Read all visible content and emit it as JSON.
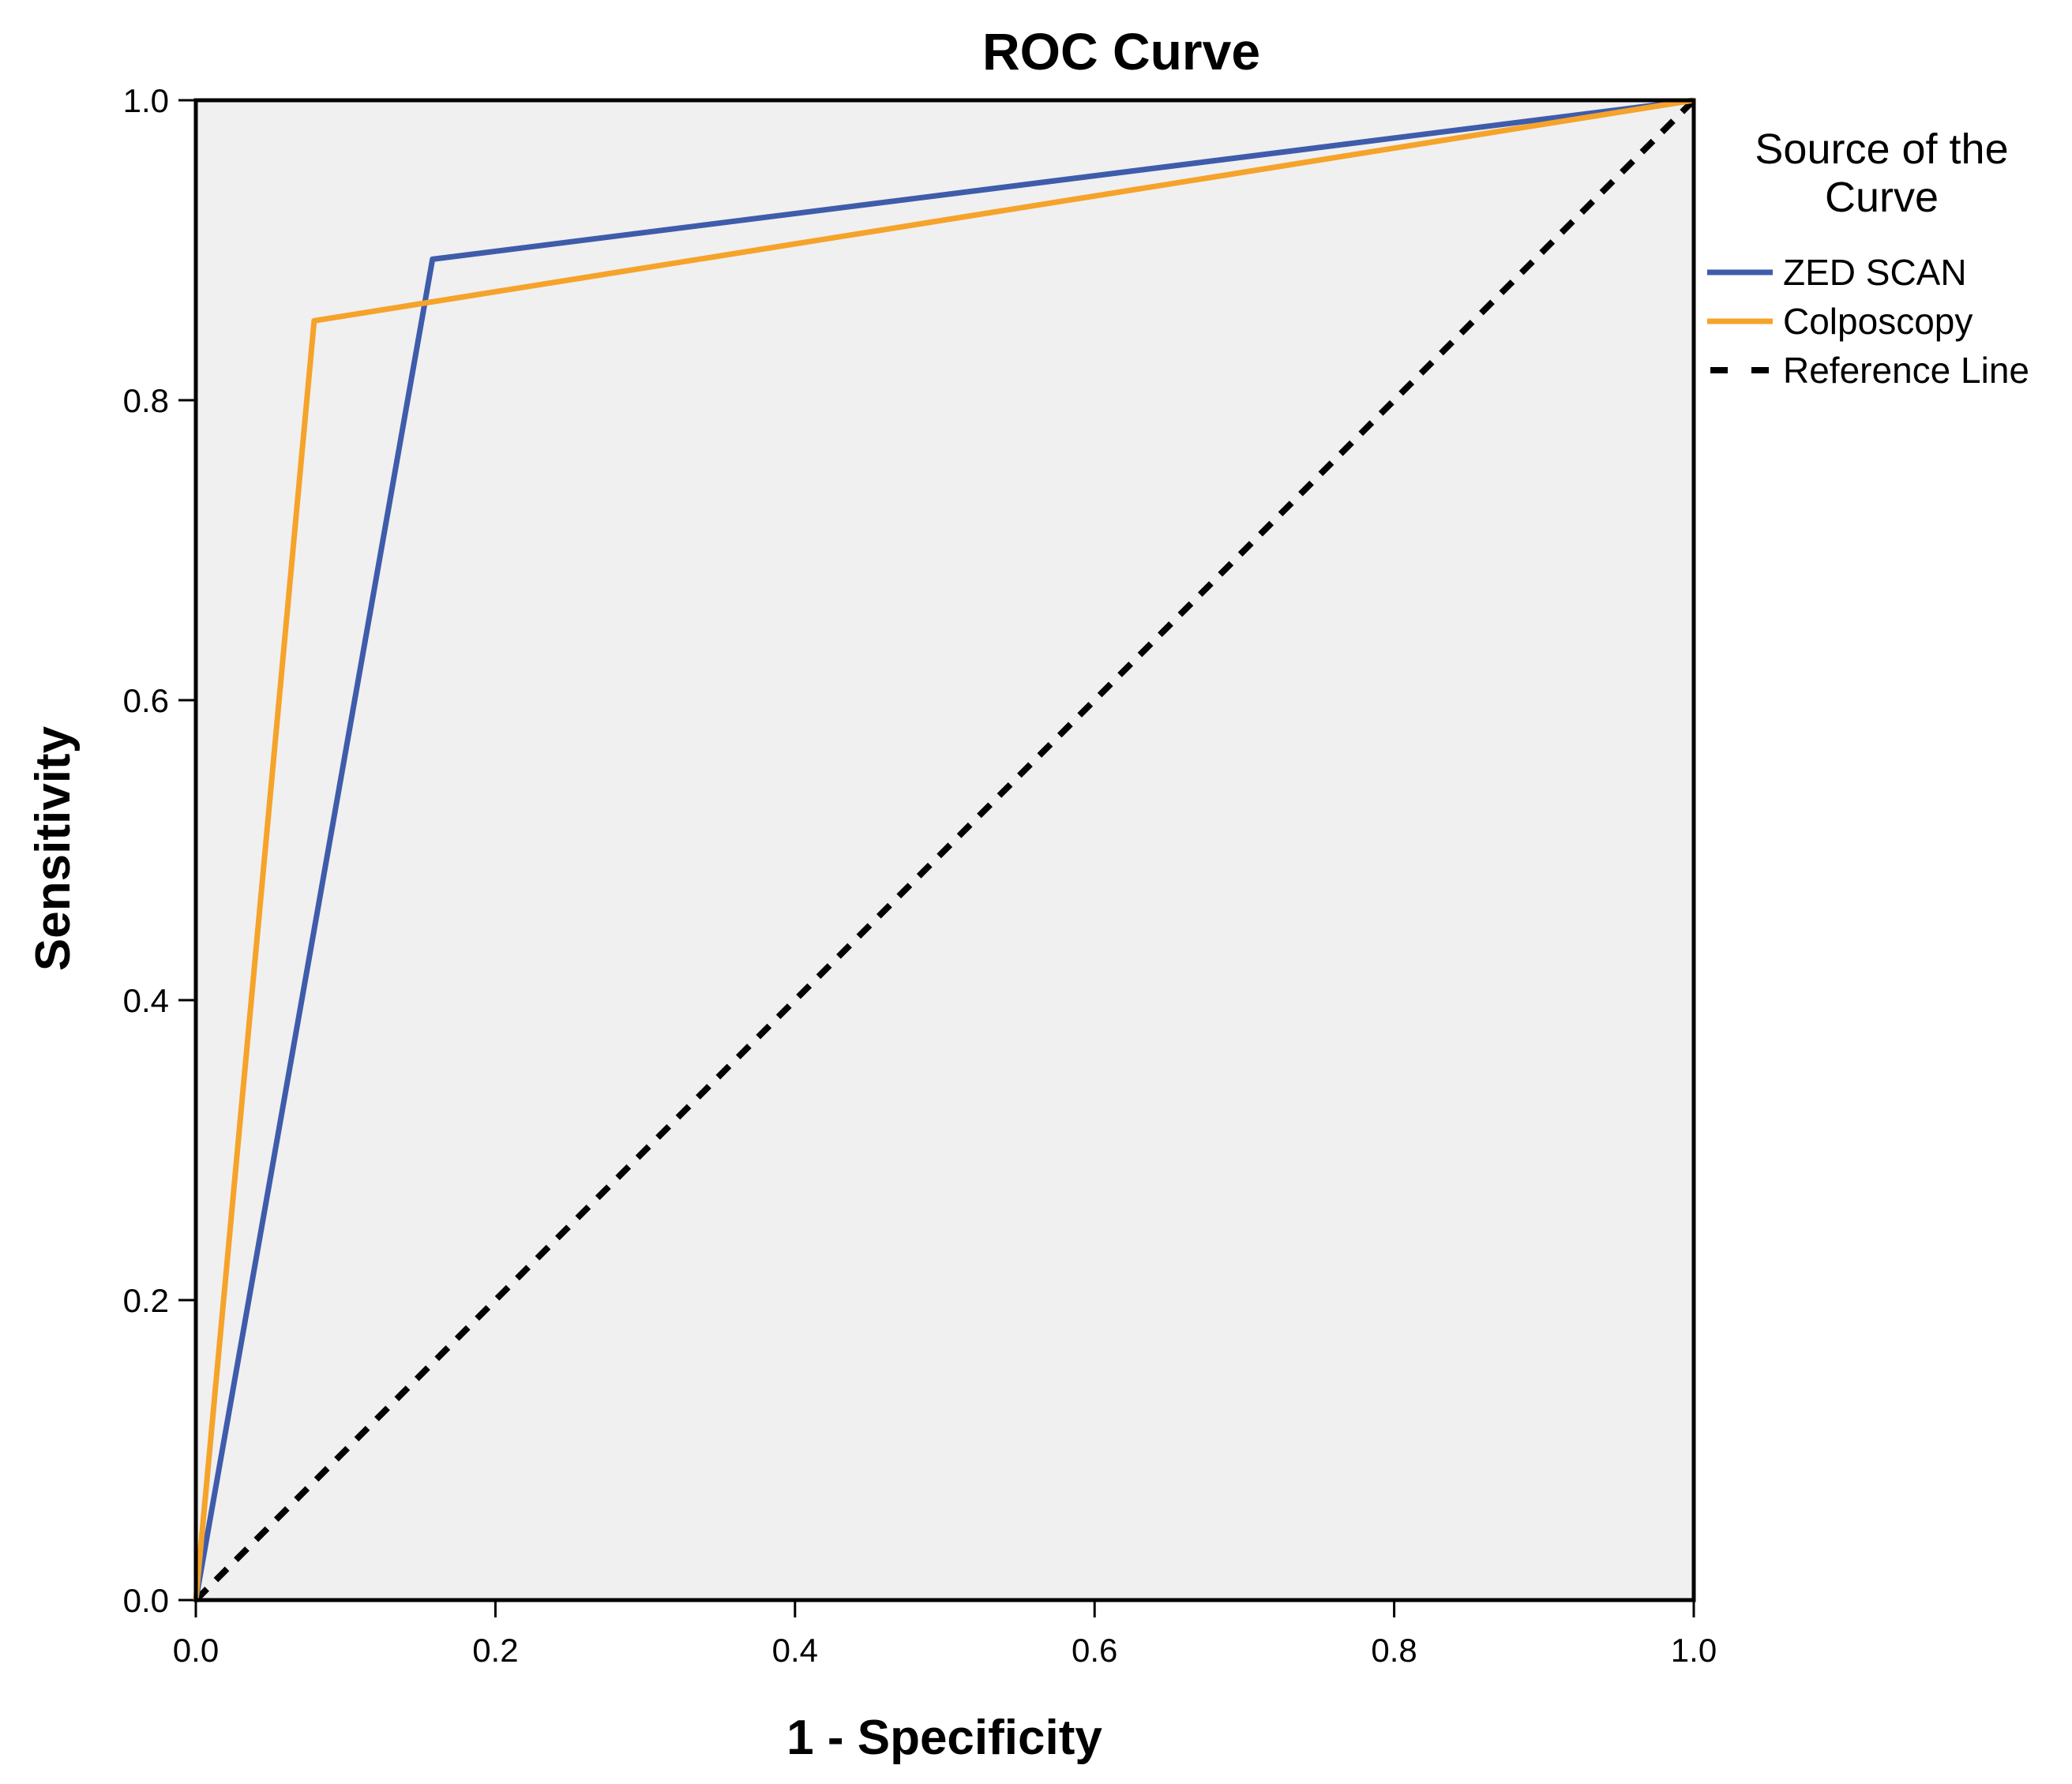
{
  "chart_data": {
    "type": "line",
    "title": "ROC Curve",
    "xlabel": "1 - Specificity",
    "ylabel": "Sensitivity",
    "xlim": [
      0,
      1
    ],
    "ylim": [
      0,
      1
    ],
    "x_ticks": [
      "0.0",
      "0.2",
      "0.4",
      "0.6",
      "0.8",
      "1.0"
    ],
    "y_ticks": [
      "0.0",
      "0.2",
      "0.4",
      "0.6",
      "0.8",
      "1.0"
    ],
    "legend": {
      "title_line1": "Source of the",
      "title_line2": "Curve",
      "position": "right"
    },
    "series": [
      {
        "name": "ZED SCAN",
        "color": "#3f5cab",
        "style": "solid",
        "x": [
          0,
          0.158,
          1
        ],
        "y": [
          0,
          0.894,
          1
        ]
      },
      {
        "name": "Colposcopy",
        "color": "#f5a32a",
        "style": "solid",
        "x": [
          0,
          0.079,
          1
        ],
        "y": [
          0,
          0.853,
          1
        ]
      },
      {
        "name": "Reference Line",
        "color": "#000000",
        "style": "dashed",
        "x": [
          0,
          1
        ],
        "y": [
          0,
          1
        ]
      }
    ],
    "plot_background": "#f0f0f0"
  }
}
